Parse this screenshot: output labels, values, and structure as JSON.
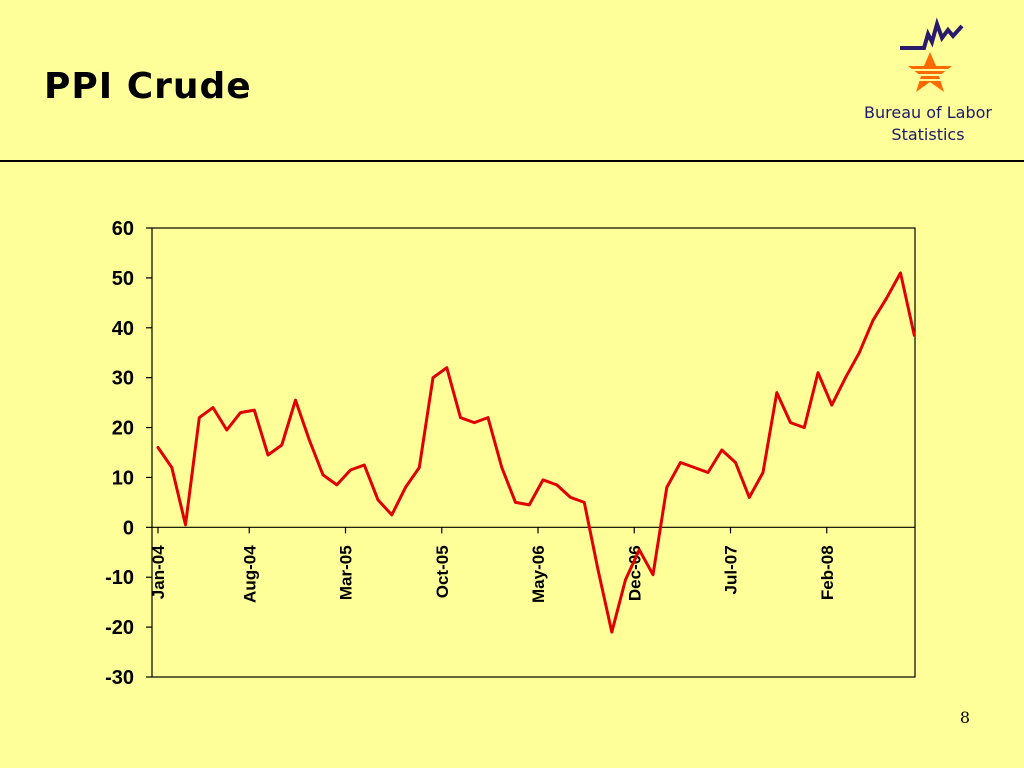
{
  "slide": {
    "title": "PPI Crude",
    "organization_line1": "Bureau of Labor",
    "organization_line2": "Statistics",
    "page_number": "8"
  },
  "colors": {
    "background": "#ffff99",
    "series_line": "#e00000",
    "logo_star": "#ff6a00",
    "logo_chart_line": "#2a1a6e"
  },
  "chart_data": {
    "type": "line",
    "title": "",
    "xlabel": "",
    "ylabel": "",
    "ylim": [
      -30,
      60
    ],
    "yticks": [
      60,
      50,
      40,
      30,
      20,
      10,
      0,
      -10,
      -20,
      -30
    ],
    "x_tick_labels": [
      "Jan-04",
      "Aug-04",
      "Mar-05",
      "Oct-05",
      "May-06",
      "Dec-06",
      "Jul-07",
      "Feb-08"
    ],
    "x_tick_every": 7,
    "grid": false,
    "legend": "none",
    "series": [
      {
        "values": [
          16,
          12,
          0.5,
          22,
          24,
          19.5,
          23,
          23.5,
          14.5,
          16.5,
          25.5,
          17.5,
          10.5,
          8.5,
          11.5,
          12.5,
          5.5,
          2.5,
          8,
          12,
          30,
          32,
          22,
          21,
          22,
          12,
          5,
          4.5,
          9.5,
          8.5,
          6,
          5,
          -8.5,
          -21,
          -10.5,
          -4.5,
          -9.5,
          8,
          13,
          12,
          11,
          15.5,
          13,
          6,
          11,
          27,
          21,
          20,
          31,
          24.5,
          30,
          35,
          41.5,
          46,
          51,
          38.5
        ]
      }
    ]
  }
}
